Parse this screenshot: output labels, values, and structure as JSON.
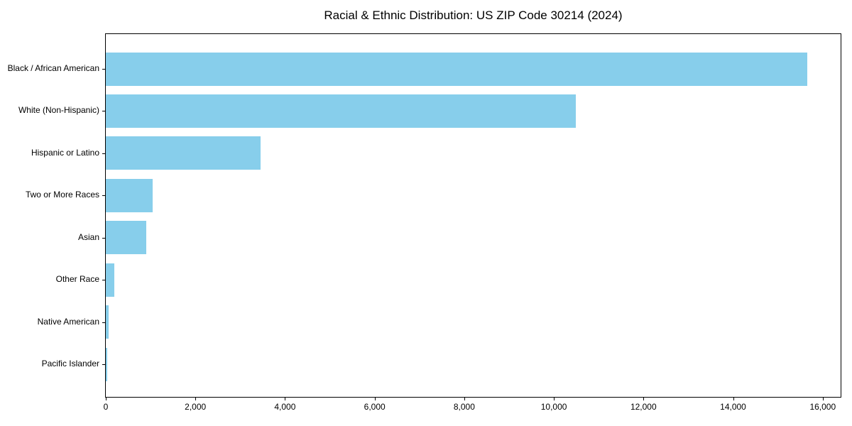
{
  "figure": {
    "background_color": "#FFFFFF",
    "spine_color": "#000000",
    "text_color": "#000000"
  },
  "chart_data": {
    "type": "bar",
    "orientation": "horizontal",
    "title": "Racial & Ethnic Distribution: US ZIP Code 30214 (2024)",
    "categories": [
      "Black / African American",
      "White (Non-Hispanic)",
      "Hispanic or Latino",
      "Two or More Races",
      "Asian",
      "Other Race",
      "Native American",
      "Pacific Islander"
    ],
    "values": [
      15650,
      10490,
      3450,
      1045,
      900,
      190,
      55,
      30
    ],
    "bar_color": "#87CEEB",
    "xlabel": "",
    "ylabel": "",
    "xlim": [
      0,
      16400
    ],
    "xticks": [
      0,
      2000,
      4000,
      6000,
      8000,
      10000,
      12000,
      14000,
      16000
    ],
    "xtick_labels": [
      "0",
      "2,000",
      "4,000",
      "6,000",
      "8,000",
      "10,000",
      "12,000",
      "14,000",
      "16,000"
    ],
    "grid": false,
    "legend": null
  }
}
